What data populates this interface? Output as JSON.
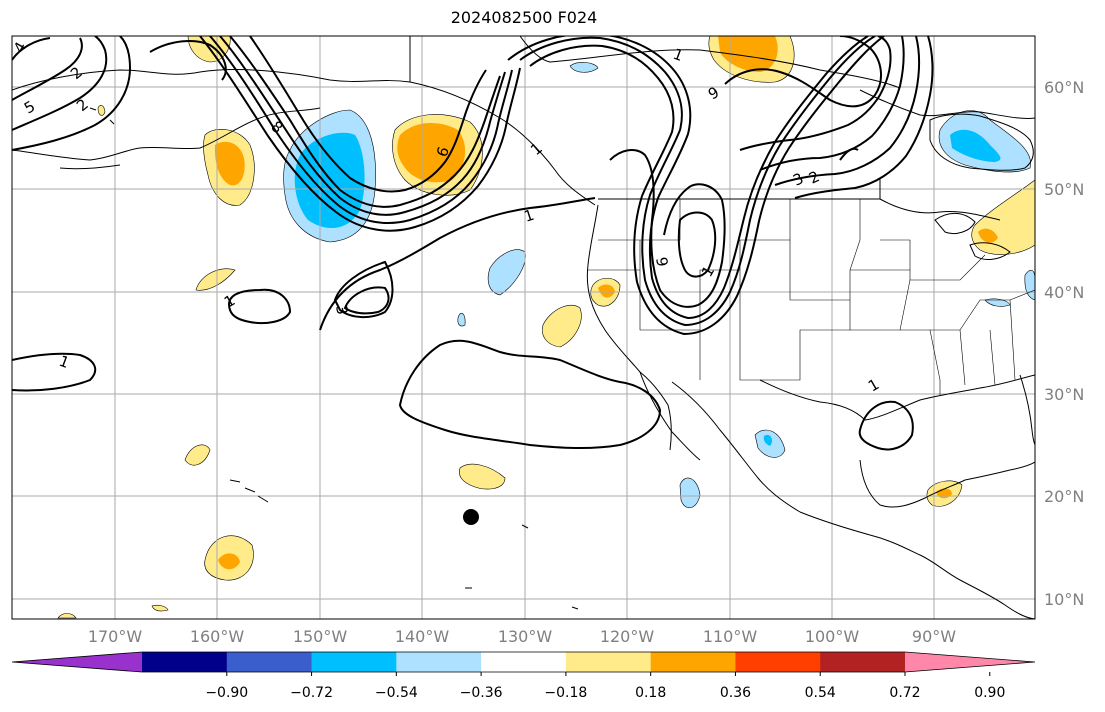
{
  "title": "2024082500 F024",
  "lat_labels": [
    "60°N",
    "50°N",
    "40°N",
    "30°N",
    "20°N",
    "10°N"
  ],
  "lon_labels": [
    "170°W",
    "160°W",
    "150°W",
    "140°W",
    "130°W",
    "120°W",
    "110°W",
    "100°W",
    "90°W"
  ],
  "colorbar": {
    "ticks": [
      "−0.90",
      "−0.72",
      "−0.54",
      "−0.36",
      "−0.18",
      "0.18",
      "0.36",
      "0.54",
      "0.72",
      "0.90"
    ],
    "colors": [
      "#9932cc",
      "#00008b",
      "#3a5fcd",
      "#00bfff",
      "#aee0ff",
      "#ffffff",
      "#ffeb8a",
      "#ffa500",
      "#ff3f00",
      "#b22222",
      "#ff88aa"
    ]
  },
  "contour_labels": [
    "4",
    "2",
    "2",
    "5",
    "8",
    "1",
    "1",
    "3",
    "1",
    "1",
    "6",
    "1",
    "9",
    "3",
    "2",
    "9",
    "1",
    "1"
  ],
  "storm_marker": "black-dot"
}
